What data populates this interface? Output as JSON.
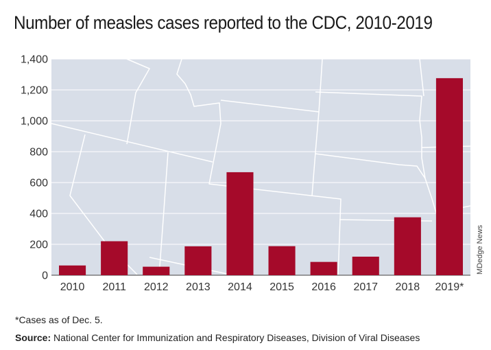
{
  "chart_data": {
    "type": "bar",
    "title": "Number of measles cases reported to the CDC, 2010-2019",
    "categories": [
      "2010",
      "2011",
      "2012",
      "2013",
      "2014",
      "2015",
      "2016",
      "2017",
      "2018",
      "2019*"
    ],
    "values": [
      63,
      220,
      55,
      187,
      667,
      188,
      86,
      120,
      375,
      1276
    ],
    "ylim": [
      0,
      1400
    ],
    "yticks": [
      0,
      200,
      400,
      600,
      800,
      1000,
      1200,
      1400
    ],
    "ytick_labels": [
      "0",
      "200",
      "400",
      "600",
      "800",
      "1,000",
      "1,200",
      "1,400"
    ],
    "xlabel": "",
    "ylabel": "",
    "grid": true,
    "bar_color": "#a50a2a",
    "plot_background": "#d8dee8",
    "background_image": "map-of-united-states-outline"
  },
  "credit": "MDedge News",
  "footnote": "*Cases as of Dec. 5.",
  "source": {
    "label": "Source:",
    "text": "National Center for Immunization and Respiratory Diseases, Division of Viral Diseases"
  }
}
